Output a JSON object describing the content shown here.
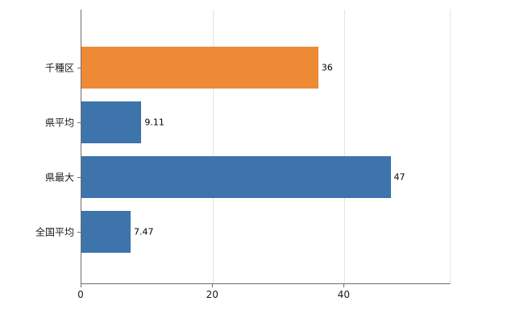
{
  "chart_data": {
    "type": "bar",
    "orientation": "horizontal",
    "title": "",
    "xlabel": "",
    "ylabel": "",
    "categories": [
      "千種区",
      "県平均",
      "県最大",
      "全国平均"
    ],
    "values": [
      36,
      9.11,
      47,
      7.47
    ],
    "value_labels": [
      "36",
      "9.11",
      "47",
      "7.47"
    ],
    "series": [
      {
        "name": "",
        "values": [
          36,
          9.11,
          47,
          7.47
        ]
      }
    ],
    "bar_colors": [
      "#EE8A36",
      "#3D74AC",
      "#3D74AC",
      "#3D74AC"
    ],
    "xlim": [
      0,
      56
    ],
    "xticks": [
      0,
      20,
      40
    ],
    "xtick_labels": [
      "0",
      "20",
      "40"
    ],
    "grid": true,
    "gridline_color": "#e3e3e3",
    "axis_color": "#6e6e6e",
    "background": "#ffffff",
    "legend": false
  }
}
